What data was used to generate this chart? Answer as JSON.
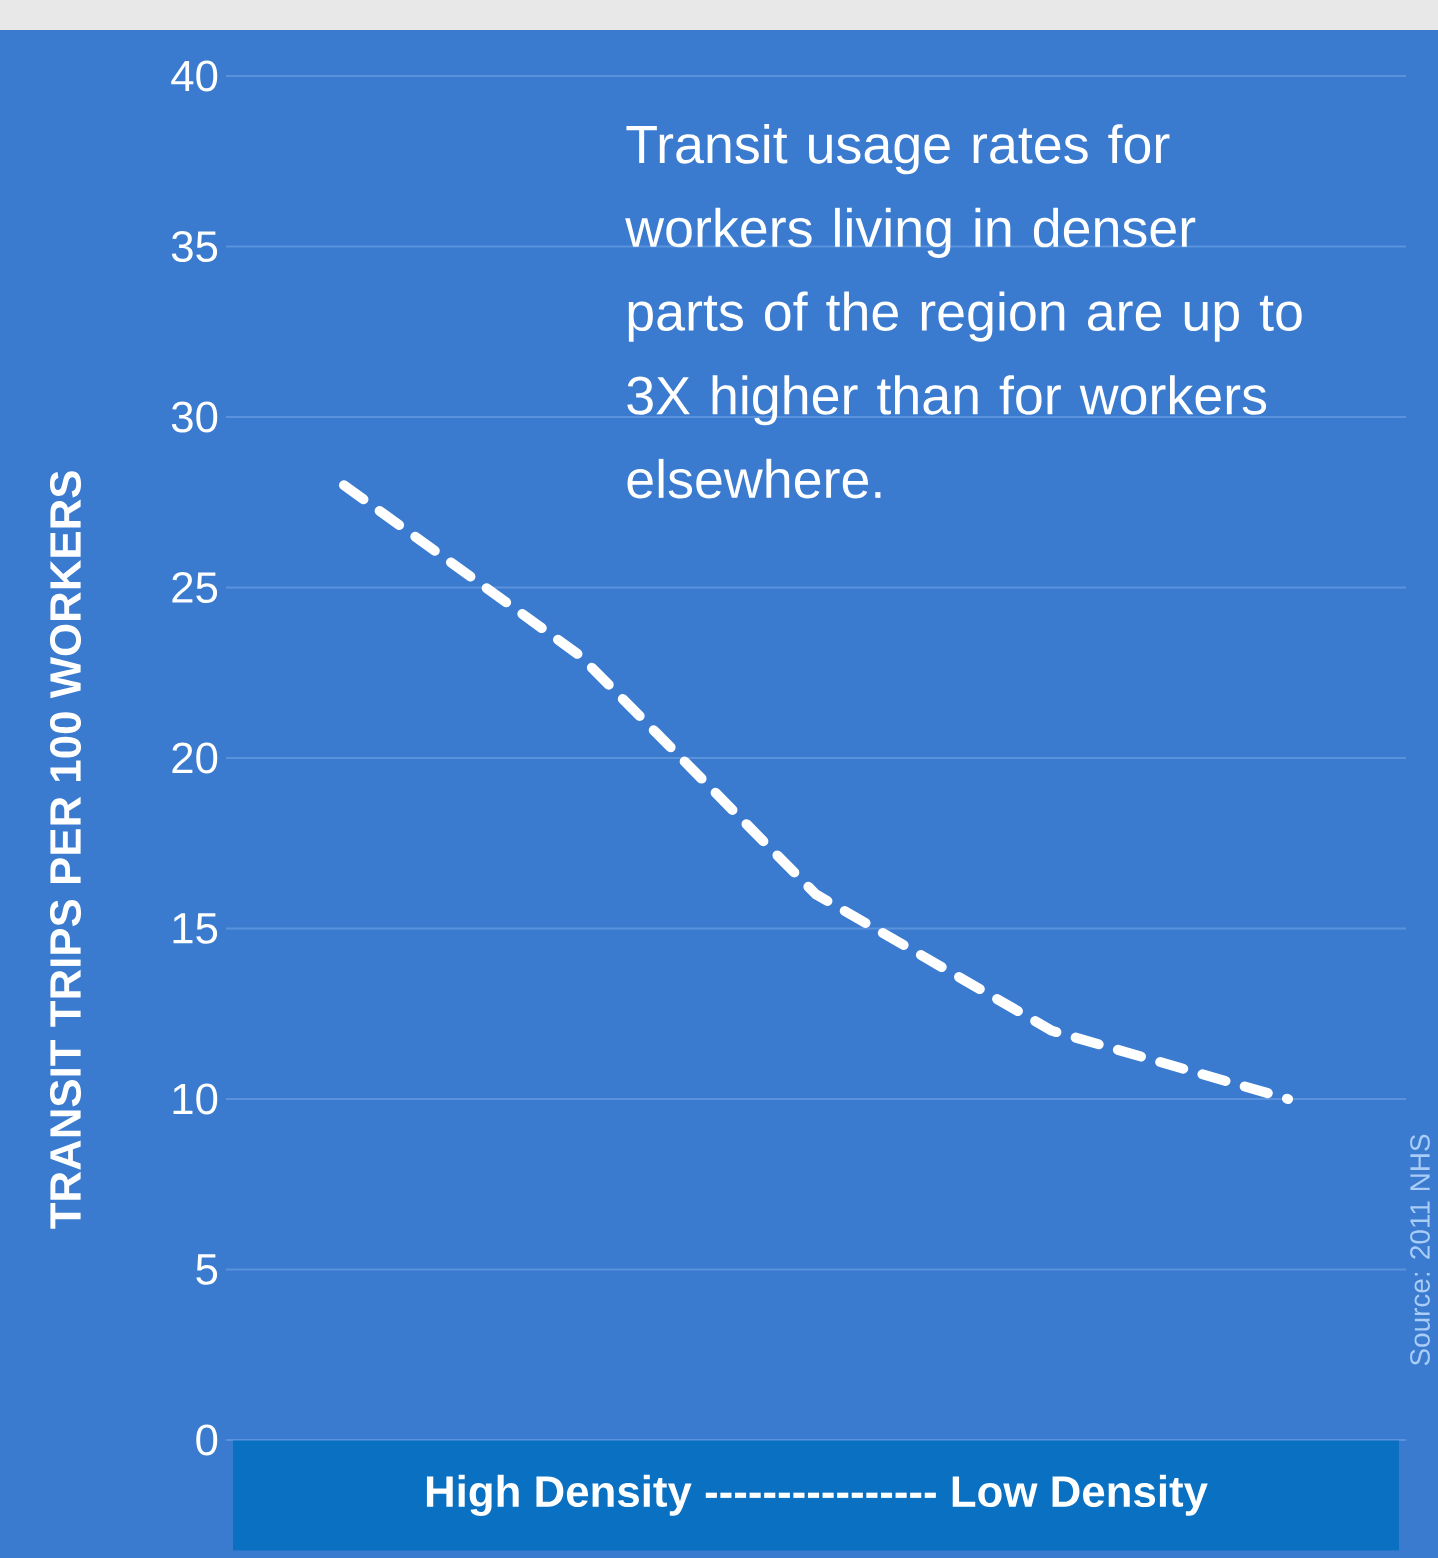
{
  "chart_data": {
    "type": "line",
    "xlabel": "High Density ---------------- Low Density",
    "ylabel": "TRANSIT TRIPS PER 100 WORKERS",
    "annotations": [
      "Transit usage rates for workers living in denser parts of the region are up to 3X higher than for workers elsewhere.",
      "Source: 2011 NHS"
    ],
    "categories": [
      null,
      null,
      null,
      null,
      null
    ],
    "series": [
      {
        "color": "#ffffff",
        "values": [
          28,
          23,
          16,
          12,
          10
        ]
      }
    ],
    "ylim": [
      0,
      40
    ],
    "yticks": [
      0,
      5,
      10,
      15,
      20,
      25,
      30,
      35,
      40
    ],
    "grid": "y",
    "tick_labels": "y",
    "line_style": "dashed",
    "marker": "none"
  }
}
